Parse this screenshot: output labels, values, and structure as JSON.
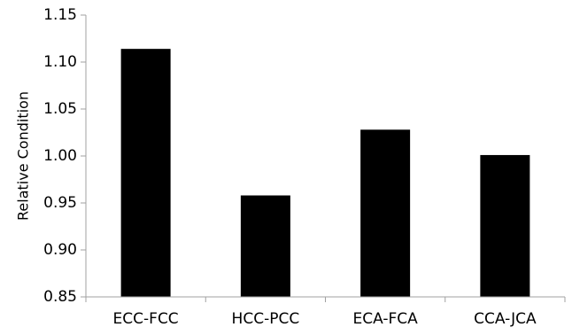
{
  "chart_data": {
    "type": "bar",
    "title": "",
    "xlabel": "",
    "ylabel": "Relative Condition",
    "categories": [
      "ECC-FCC",
      "HCC-PCC",
      "ECA-FCA",
      "CCA-JCA"
    ],
    "values": [
      1.114,
      0.958,
      1.028,
      1.001
    ],
    "ylim": [
      0.85,
      1.15
    ],
    "yticks": [
      0.85,
      0.9,
      0.95,
      1.0,
      1.05,
      1.1,
      1.15
    ],
    "ytick_labels": [
      "0.85",
      "0.90",
      "0.95",
      "1.00",
      "1.05",
      "1.10",
      "1.15"
    ],
    "grid": false,
    "legend": "none",
    "bar_color": "#000000",
    "axis_color": "#a0a0a0"
  }
}
